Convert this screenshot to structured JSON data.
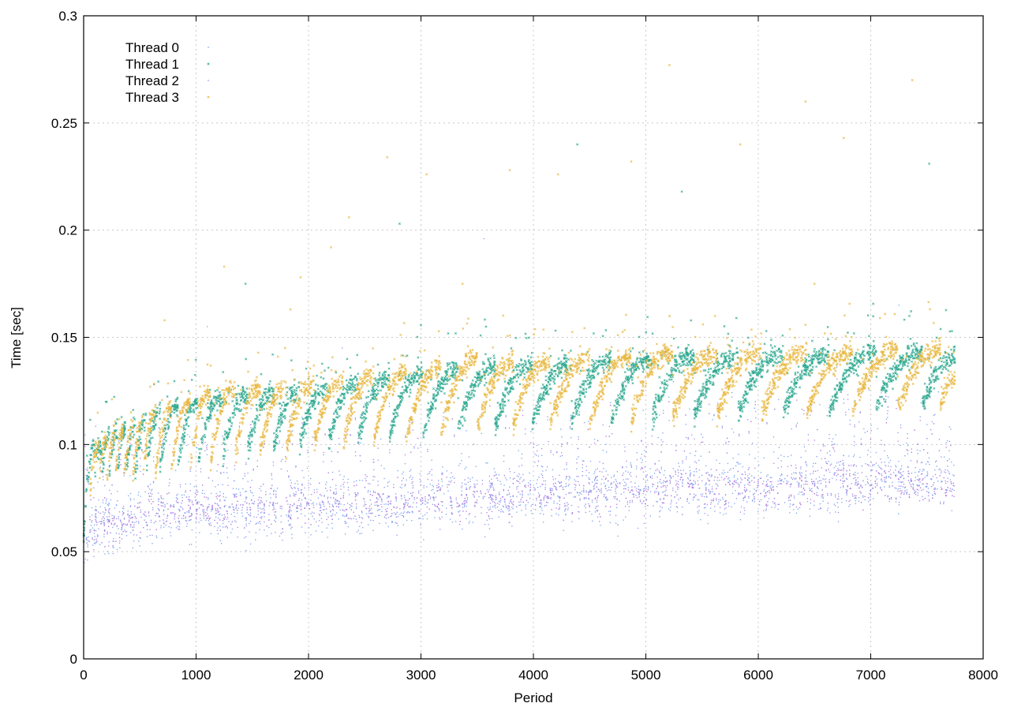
{
  "chart_data": {
    "type": "scatter",
    "title": "",
    "xlabel": "Period",
    "ylabel": "Time [sec]",
    "xlim": [
      0,
      8000
    ],
    "ylim": [
      0,
      0.3
    ],
    "x_ticks": [
      "0",
      "1000",
      "2000",
      "3000",
      "4000",
      "5000",
      "6000",
      "7000",
      "8000"
    ],
    "y_ticks": [
      "0",
      "0.05",
      "0.1",
      "0.15",
      "0.2",
      "0.25",
      "0.3"
    ],
    "grid": true,
    "legend_position": "top-left",
    "series": [
      {
        "name": "Thread 0",
        "color": "#7b9ff0",
        "marker": "dot",
        "trend": [
          [
            0,
            0.06
          ],
          [
            100,
            0.063
          ],
          [
            500,
            0.066
          ],
          [
            1000,
            0.068
          ],
          [
            2000,
            0.071
          ],
          [
            3000,
            0.074
          ],
          [
            4000,
            0.077
          ],
          [
            5000,
            0.079
          ],
          [
            6000,
            0.081
          ],
          [
            7000,
            0.083
          ],
          [
            7750,
            0.086
          ]
        ],
        "spread": 0.007,
        "outliers": [
          [
            3560,
            0.196
          ],
          [
            5210,
            0.16
          ],
          [
            7250,
            0.165
          ],
          [
            1100,
            0.155
          ],
          [
            2300,
            0.145
          ]
        ]
      },
      {
        "name": "Thread 1",
        "color": "#2ca88f",
        "marker": "cross",
        "sawtooth": {
          "period_points": [
            [
              0,
              100,
              0.055,
              0.1
            ],
            [
              100,
              160,
              0.088,
              0.1
            ],
            [
              160,
              230,
              0.085,
              0.104
            ],
            [
              230,
              300,
              0.085,
              0.106
            ],
            [
              300,
              380,
              0.085,
              0.108
            ],
            [
              380,
              460,
              0.086,
              0.11
            ],
            [
              460,
              560,
              0.086,
              0.112
            ],
            [
              560,
              680,
              0.088,
              0.115
            ],
            [
              680,
              840,
              0.09,
              0.118
            ],
            [
              840,
              1020,
              0.091,
              0.12
            ],
            [
              1020,
              1240,
              0.093,
              0.122
            ],
            [
              1240,
              1460,
              0.095,
              0.123
            ],
            [
              1460,
              1690,
              0.097,
              0.124
            ],
            [
              1690,
              1920,
              0.098,
              0.125
            ],
            [
              1920,
              2180,
              0.1,
              0.127
            ],
            [
              2180,
              2440,
              0.101,
              0.129
            ],
            [
              2440,
              2720,
              0.103,
              0.131
            ],
            [
              2720,
              3020,
              0.104,
              0.133
            ],
            [
              3020,
              3330,
              0.106,
              0.135
            ],
            [
              3330,
              3660,
              0.107,
              0.136
            ],
            [
              3660,
              3990,
              0.108,
              0.137
            ],
            [
              3990,
              4340,
              0.109,
              0.138
            ],
            [
              4340,
              4690,
              0.11,
              0.139
            ],
            [
              4690,
              5060,
              0.111,
              0.14
            ],
            [
              5060,
              5430,
              0.112,
              0.141
            ],
            [
              5430,
              5820,
              0.113,
              0.141
            ],
            [
              5820,
              6220,
              0.114,
              0.142
            ],
            [
              6220,
              6630,
              0.115,
              0.142
            ],
            [
              6630,
              7050,
              0.116,
              0.143
            ],
            [
              7050,
              7460,
              0.117,
              0.143
            ],
            [
              7460,
              7750,
              0.118,
              0.14
            ]
          ]
        },
        "outliers": [
          [
            2810,
            0.203
          ],
          [
            4390,
            0.24
          ],
          [
            5320,
            0.218
          ],
          [
            1440,
            0.175
          ],
          [
            7520,
            0.231
          ]
        ]
      },
      {
        "name": "Thread 2",
        "color": "#b57ee0",
        "marker": "dot",
        "trend": [
          [
            0,
            0.058
          ],
          [
            100,
            0.062
          ],
          [
            500,
            0.066
          ],
          [
            1000,
            0.069
          ],
          [
            2000,
            0.072
          ],
          [
            3000,
            0.075
          ],
          [
            4000,
            0.077
          ],
          [
            5000,
            0.078
          ],
          [
            6000,
            0.08
          ],
          [
            7000,
            0.082
          ],
          [
            7750,
            0.081
          ]
        ],
        "spread": 0.005,
        "outliers": [
          [
            4700,
            0.105
          ],
          [
            6500,
            0.102
          ]
        ]
      },
      {
        "name": "Thread 3",
        "color": "#e8b842",
        "marker": "cross",
        "sawtooth": {
          "period_points": [
            [
              60,
              140,
              0.08,
              0.1
            ],
            [
              140,
              210,
              0.082,
              0.103
            ],
            [
              210,
              280,
              0.083,
              0.105
            ],
            [
              280,
              360,
              0.084,
              0.107
            ],
            [
              360,
              440,
              0.084,
              0.109
            ],
            [
              440,
              530,
              0.085,
              0.111
            ],
            [
              530,
              640,
              0.086,
              0.114
            ],
            [
              640,
              780,
              0.087,
              0.117
            ],
            [
              780,
              950,
              0.089,
              0.12
            ],
            [
              950,
              1130,
              0.09,
              0.125
            ],
            [
              1130,
              1350,
              0.093,
              0.126
            ],
            [
              1350,
              1570,
              0.095,
              0.126
            ],
            [
              1570,
              1800,
              0.096,
              0.127
            ],
            [
              1800,
              2050,
              0.098,
              0.128
            ],
            [
              2050,
              2310,
              0.1,
              0.13
            ],
            [
              2310,
              2580,
              0.101,
              0.132
            ],
            [
              2580,
              2870,
              0.102,
              0.134
            ],
            [
              2870,
              3180,
              0.104,
              0.136
            ],
            [
              3180,
              3500,
              0.105,
              0.14
            ],
            [
              3500,
              3820,
              0.107,
              0.138
            ],
            [
              3820,
              4150,
              0.108,
              0.139
            ],
            [
              4150,
              4500,
              0.109,
              0.14
            ],
            [
              4500,
              4870,
              0.11,
              0.141
            ],
            [
              4870,
              5240,
              0.111,
              0.143
            ],
            [
              5240,
              5630,
              0.112,
              0.142
            ],
            [
              5630,
              6030,
              0.113,
              0.143
            ],
            [
              6030,
              6430,
              0.114,
              0.143
            ],
            [
              6430,
              6840,
              0.115,
              0.143
            ],
            [
              6840,
              7240,
              0.116,
              0.144
            ],
            [
              7240,
              7620,
              0.117,
              0.144
            ],
            [
              7620,
              7750,
              0.118,
              0.13
            ]
          ]
        },
        "outliers": [
          [
            5210,
            0.277
          ],
          [
            7370,
            0.27
          ],
          [
            6420,
            0.26
          ],
          [
            6760,
            0.243
          ],
          [
            5840,
            0.24
          ],
          [
            4870,
            0.232
          ],
          [
            3050,
            0.226
          ],
          [
            2700,
            0.234
          ],
          [
            3790,
            0.228
          ],
          [
            4220,
            0.226
          ],
          [
            2360,
            0.206
          ],
          [
            1930,
            0.178
          ],
          [
            1250,
            0.183
          ],
          [
            3370,
            0.175
          ],
          [
            720,
            0.158
          ],
          [
            1840,
            0.163
          ],
          [
            2200,
            0.192
          ],
          [
            6500,
            0.175
          ]
        ]
      }
    ]
  }
}
